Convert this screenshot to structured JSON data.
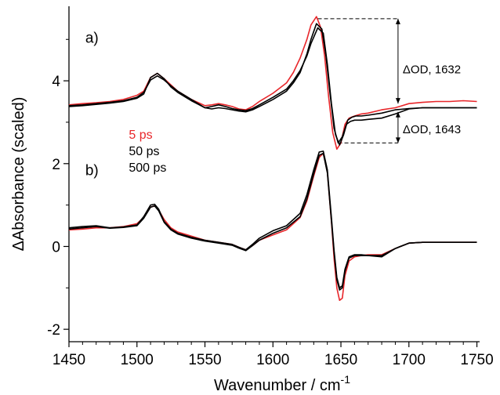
{
  "chart_data": {
    "type": "line",
    "xlabel": "Wavenumber / cm",
    "xlabel_superscript": "-1",
    "ylabel": "ΔAbsorbance (scaled)",
    "xlim": [
      1450,
      1752
    ],
    "ylim": [
      -2.3,
      5.8
    ],
    "xticks": [
      1450,
      1500,
      1550,
      1600,
      1650,
      1700,
      1750
    ],
    "yticks": [
      -2,
      0,
      2,
      4
    ],
    "panel_labels": [
      {
        "text": "a)",
        "x": 1462,
        "y": 5.05
      },
      {
        "text": "b)",
        "x": 1462,
        "y": 1.85
      }
    ],
    "legend": [
      {
        "label": "5 ps",
        "color": "#e8262a"
      },
      {
        "label": "50 ps",
        "color": "#000000"
      },
      {
        "label": "500 ps",
        "color": "#000000"
      }
    ],
    "annotations": [
      {
        "text": "ΔOD, 1632",
        "arrow_x": 1692,
        "y_from": 5.5,
        "y_to": 3.45
      },
      {
        "text": "ΔOD, 1643",
        "arrow_x": 1692,
        "y_from": 3.25,
        "y_to": 2.5
      }
    ],
    "series": [
      {
        "name": "5 ps",
        "panel": "a",
        "color": "#e8262a",
        "x": [
          1450,
          1460,
          1470,
          1480,
          1490,
          1500,
          1505,
          1510,
          1515,
          1520,
          1525,
          1530,
          1540,
          1550,
          1555,
          1560,
          1565,
          1570,
          1575,
          1580,
          1585,
          1590,
          1600,
          1610,
          1615,
          1620,
          1625,
          1628,
          1632,
          1635,
          1638,
          1641,
          1644,
          1647,
          1650,
          1653,
          1656,
          1660,
          1665,
          1670,
          1680,
          1690,
          1700,
          1710,
          1720,
          1730,
          1740,
          1750
        ],
        "y": [
          3.42,
          3.45,
          3.47,
          3.5,
          3.55,
          3.65,
          3.75,
          4.08,
          4.18,
          4.05,
          3.9,
          3.75,
          3.55,
          3.4,
          3.42,
          3.45,
          3.42,
          3.38,
          3.32,
          3.3,
          3.38,
          3.5,
          3.7,
          3.95,
          4.2,
          4.55,
          5.0,
          5.35,
          5.55,
          5.3,
          4.6,
          3.6,
          2.75,
          2.35,
          2.5,
          2.95,
          3.1,
          3.15,
          3.2,
          3.22,
          3.3,
          3.35,
          3.45,
          3.48,
          3.5,
          3.5,
          3.52,
          3.5
        ]
      },
      {
        "name": "50 ps",
        "panel": "a",
        "color": "#000000",
        "x": [
          1450,
          1460,
          1470,
          1480,
          1490,
          1500,
          1505,
          1510,
          1515,
          1520,
          1525,
          1530,
          1540,
          1550,
          1555,
          1560,
          1565,
          1570,
          1575,
          1580,
          1585,
          1590,
          1600,
          1610,
          1615,
          1620,
          1625,
          1628,
          1632,
          1636,
          1639,
          1642,
          1645,
          1648,
          1651,
          1654,
          1657,
          1660,
          1665,
          1670,
          1680,
          1690,
          1700,
          1710,
          1720,
          1730,
          1740,
          1750
        ],
        "y": [
          3.4,
          3.42,
          3.45,
          3.48,
          3.52,
          3.6,
          3.72,
          4.02,
          4.12,
          4.02,
          3.88,
          3.75,
          3.55,
          3.35,
          3.32,
          3.35,
          3.33,
          3.3,
          3.27,
          3.25,
          3.3,
          3.38,
          3.55,
          3.75,
          3.95,
          4.2,
          4.65,
          5.0,
          5.38,
          5.25,
          4.6,
          3.7,
          2.85,
          2.5,
          2.65,
          2.95,
          3.02,
          3.05,
          3.05,
          3.07,
          3.1,
          3.2,
          3.32,
          3.35,
          3.35,
          3.35,
          3.35,
          3.35
        ]
      },
      {
        "name": "500 ps",
        "panel": "a",
        "color": "#000000",
        "x": [
          1450,
          1460,
          1470,
          1480,
          1490,
          1500,
          1505,
          1510,
          1515,
          1520,
          1525,
          1530,
          1540,
          1550,
          1555,
          1560,
          1565,
          1570,
          1575,
          1580,
          1585,
          1590,
          1600,
          1610,
          1615,
          1620,
          1625,
          1628,
          1633,
          1637,
          1640,
          1643,
          1646,
          1649,
          1652,
          1655,
          1658,
          1661,
          1665,
          1670,
          1680,
          1690,
          1700,
          1710,
          1720,
          1730,
          1740,
          1750
        ],
        "y": [
          3.38,
          3.4,
          3.43,
          3.46,
          3.5,
          3.58,
          3.68,
          4.08,
          4.18,
          4.05,
          3.85,
          3.72,
          3.52,
          3.35,
          3.38,
          3.42,
          3.38,
          3.33,
          3.3,
          3.28,
          3.33,
          3.42,
          3.6,
          3.8,
          4.0,
          4.25,
          4.6,
          4.9,
          5.28,
          5.15,
          4.4,
          3.45,
          2.7,
          2.45,
          2.7,
          3.05,
          3.12,
          3.15,
          3.15,
          3.17,
          3.22,
          3.3,
          3.33,
          3.35,
          3.35,
          3.35,
          3.35,
          3.35
        ]
      },
      {
        "name": "5 ps",
        "panel": "b",
        "color": "#e8262a",
        "x": [
          1450,
          1460,
          1470,
          1480,
          1490,
          1500,
          1505,
          1510,
          1513,
          1516,
          1520,
          1525,
          1530,
          1540,
          1550,
          1560,
          1570,
          1575,
          1580,
          1585,
          1590,
          1600,
          1610,
          1620,
          1625,
          1630,
          1634,
          1637,
          1640,
          1643,
          1645,
          1647,
          1649,
          1651,
          1653,
          1656,
          1660,
          1665,
          1670,
          1680,
          1690,
          1700,
          1710,
          1720,
          1730,
          1740,
          1750
        ],
        "y": [
          0.4,
          0.42,
          0.45,
          0.45,
          0.48,
          0.55,
          0.7,
          0.95,
          0.98,
          0.88,
          0.65,
          0.45,
          0.35,
          0.25,
          0.15,
          0.1,
          0.05,
          -0.02,
          -0.08,
          0.02,
          0.15,
          0.28,
          0.4,
          0.7,
          1.1,
          1.7,
          2.15,
          2.25,
          1.8,
          0.6,
          -0.3,
          -1.0,
          -1.3,
          -1.25,
          -0.7,
          -0.35,
          -0.25,
          -0.22,
          -0.2,
          -0.2,
          -0.05,
          0.08,
          0.1,
          0.1,
          0.1,
          0.1,
          0.1
        ]
      },
      {
        "name": "50 ps",
        "panel": "b",
        "color": "#000000",
        "x": [
          1450,
          1460,
          1470,
          1480,
          1490,
          1500,
          1505,
          1510,
          1513,
          1516,
          1520,
          1525,
          1530,
          1540,
          1550,
          1560,
          1570,
          1575,
          1580,
          1585,
          1590,
          1600,
          1610,
          1620,
          1625,
          1630,
          1634,
          1637,
          1640,
          1643,
          1645,
          1647,
          1649,
          1651,
          1653,
          1656,
          1660,
          1665,
          1670,
          1680,
          1690,
          1700,
          1710,
          1720,
          1730,
          1740,
          1750
        ],
        "y": [
          0.45,
          0.48,
          0.5,
          0.45,
          0.47,
          0.52,
          0.72,
          1.0,
          1.02,
          0.9,
          0.6,
          0.42,
          0.32,
          0.22,
          0.15,
          0.1,
          0.05,
          -0.02,
          -0.08,
          0.05,
          0.2,
          0.38,
          0.5,
          0.8,
          1.25,
          1.85,
          2.28,
          2.3,
          1.85,
          0.7,
          -0.1,
          -0.75,
          -1.0,
          -0.95,
          -0.55,
          -0.25,
          -0.2,
          -0.2,
          -0.22,
          -0.25,
          -0.05,
          0.08,
          0.1,
          0.1,
          0.1,
          0.1,
          0.1
        ]
      },
      {
        "name": "500 ps",
        "panel": "b",
        "color": "#000000",
        "x": [
          1450,
          1460,
          1470,
          1480,
          1490,
          1500,
          1505,
          1510,
          1513,
          1516,
          1520,
          1525,
          1530,
          1540,
          1550,
          1560,
          1570,
          1575,
          1580,
          1585,
          1590,
          1600,
          1610,
          1620,
          1625,
          1630,
          1634,
          1637,
          1640,
          1643,
          1645,
          1647,
          1649,
          1651,
          1653,
          1656,
          1660,
          1665,
          1670,
          1680,
          1690,
          1700,
          1710,
          1720,
          1730,
          1740,
          1750
        ],
        "y": [
          0.42,
          0.45,
          0.48,
          0.44,
          0.46,
          0.5,
          0.68,
          0.95,
          0.98,
          0.86,
          0.58,
          0.4,
          0.3,
          0.2,
          0.13,
          0.08,
          0.03,
          -0.04,
          -0.1,
          0.02,
          0.15,
          0.32,
          0.45,
          0.72,
          1.15,
          1.75,
          2.2,
          2.25,
          1.78,
          0.62,
          -0.15,
          -0.8,
          -1.05,
          -1.0,
          -0.6,
          -0.28,
          -0.22,
          -0.22,
          -0.22,
          -0.22,
          -0.05,
          0.08,
          0.1,
          0.1,
          0.1,
          0.1,
          0.1
        ]
      }
    ]
  }
}
